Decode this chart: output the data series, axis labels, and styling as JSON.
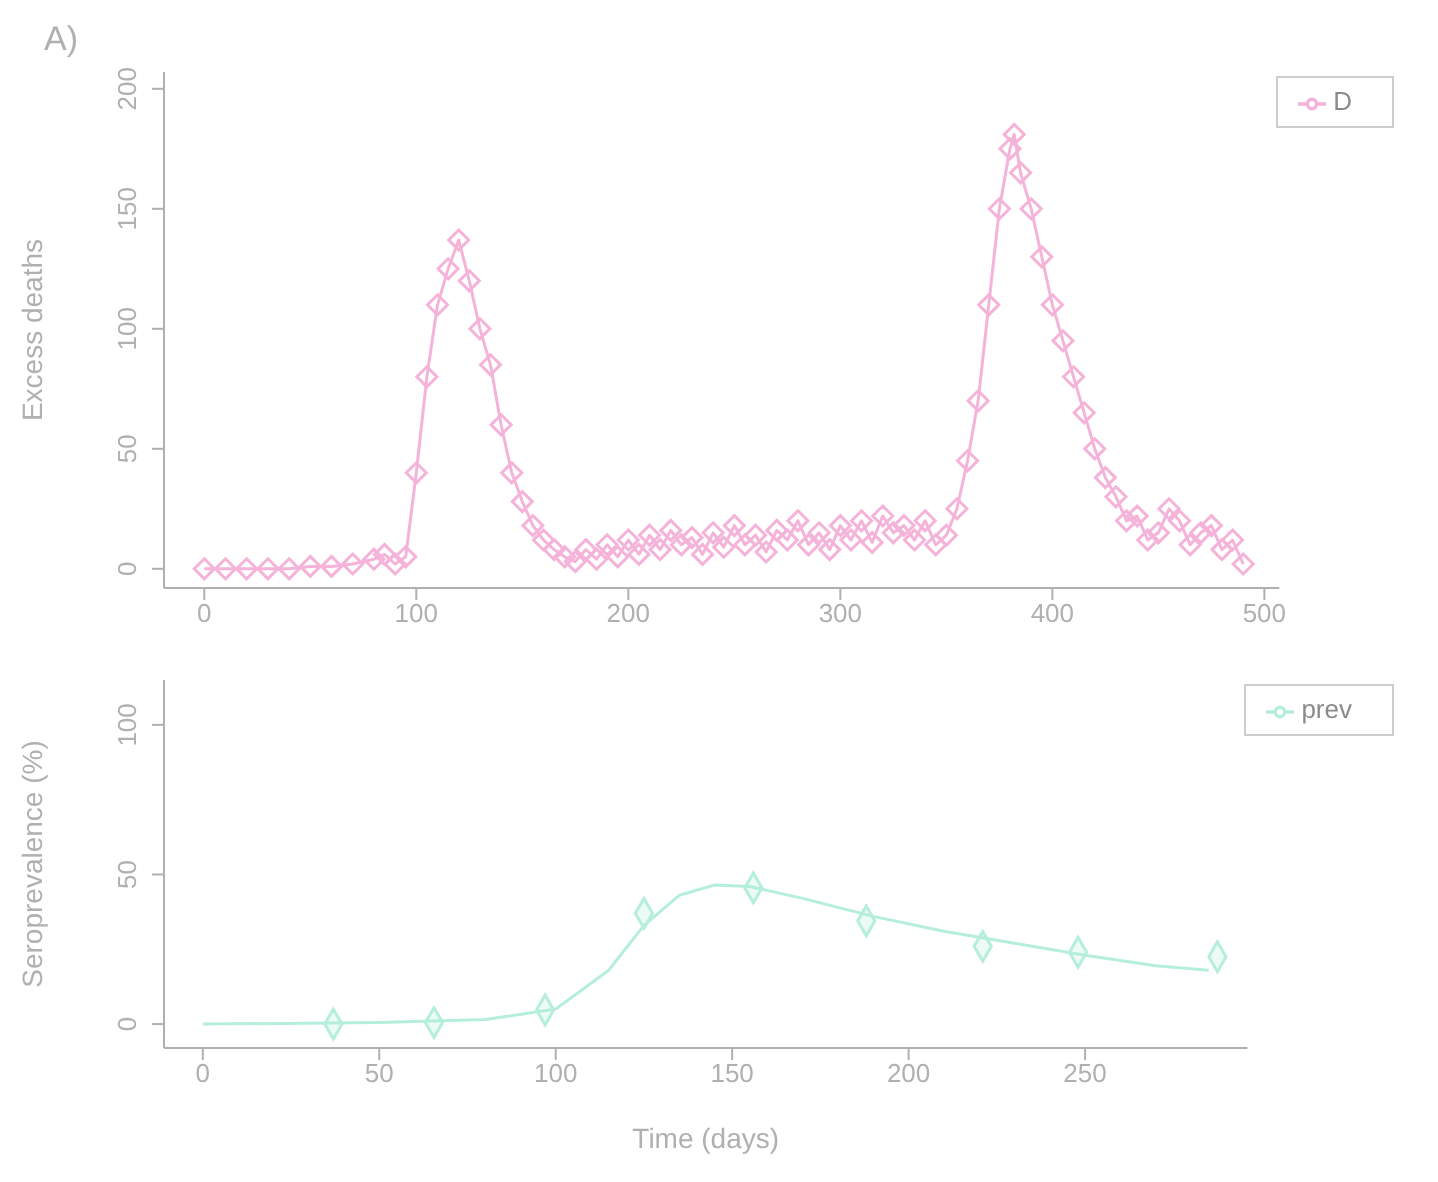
{
  "chart_data": [
    {
      "type": "line",
      "title": "A)",
      "ylabel": "Excess deaths",
      "marker": "diamond",
      "legend": "top right",
      "grid": false,
      "xlim": [
        -19,
        507
      ],
      "xticks": [
        0,
        100,
        200,
        300,
        400,
        500
      ],
      "ylim": [
        -8,
        207
      ],
      "yticks": [
        0,
        50,
        100,
        150,
        200
      ],
      "series": [
        {
          "name": "D",
          "color": "#f5b3d9",
          "x": [
            0,
            10,
            20,
            30,
            40,
            50,
            60,
            70,
            80,
            85,
            90,
            95,
            100,
            105,
            110,
            115,
            120,
            125,
            130,
            135,
            140,
            145,
            150,
            155,
            160,
            165,
            170,
            175,
            180,
            185,
            190,
            195,
            200,
            205,
            210,
            215,
            220,
            225,
            230,
            235,
            240,
            245,
            250,
            255,
            260,
            265,
            270,
            275,
            280,
            285,
            290,
            295,
            300,
            305,
            310,
            315,
            320,
            325,
            330,
            335,
            340,
            345,
            350,
            355,
            360,
            365,
            370,
            375,
            380,
            382,
            385,
            390,
            395,
            400,
            405,
            410,
            415,
            420,
            425,
            430,
            435,
            440,
            445,
            450,
            455,
            460,
            465,
            470,
            475,
            480,
            485,
            490
          ],
          "values": [
            0,
            0,
            0,
            0,
            0,
            1,
            1,
            2,
            4,
            6,
            2,
            5,
            40,
            80,
            110,
            125,
            137,
            120,
            100,
            85,
            60,
            40,
            28,
            18,
            12,
            8,
            5,
            3,
            8,
            4,
            10,
            5,
            12,
            6,
            14,
            8,
            16,
            10,
            13,
            6,
            15,
            9,
            18,
            10,
            14,
            7,
            16,
            12,
            20,
            10,
            15,
            8,
            18,
            12,
            20,
            11,
            22,
            15,
            18,
            12,
            20,
            10,
            14,
            25,
            45,
            70,
            110,
            150,
            175,
            181,
            165,
            150,
            130,
            110,
            95,
            80,
            65,
            50,
            38,
            30,
            20,
            22,
            12,
            15,
            25,
            20,
            10,
            15,
            18,
            8,
            12,
            2
          ]
        }
      ]
    },
    {
      "type": "line",
      "ylabel": "Seroprevalence (%)",
      "xlabel": "Time (days)",
      "legend": "top right",
      "grid": false,
      "xlim": [
        -11,
        296
      ],
      "xticks": [
        0,
        50,
        100,
        150,
        200,
        250
      ],
      "ylim": [
        -8,
        115
      ],
      "yticks": [
        0,
        50,
        100
      ],
      "series": [
        {
          "name": "prev",
          "marker": "none",
          "color": "#b5eedb",
          "x": [
            0,
            50,
            80,
            100,
            115,
            125,
            135,
            145,
            155,
            170,
            190,
            210,
            230,
            250,
            270,
            285
          ],
          "values": [
            0,
            0.5,
            1.5,
            5,
            18,
            33,
            43,
            46.5,
            46,
            42,
            36,
            31,
            27,
            23,
            19.5,
            18
          ]
        },
        {
          "type": "scatter",
          "marker": "diamond",
          "color": "#b5eedb",
          "x": [
            37,
            65.5,
            97,
            125,
            156,
            188,
            221,
            248,
            287.5
          ],
          "values": [
            0,
            0.5,
            4.7,
            37,
            45.5,
            34.5,
            26,
            24,
            22.5
          ]
        }
      ]
    }
  ]
}
